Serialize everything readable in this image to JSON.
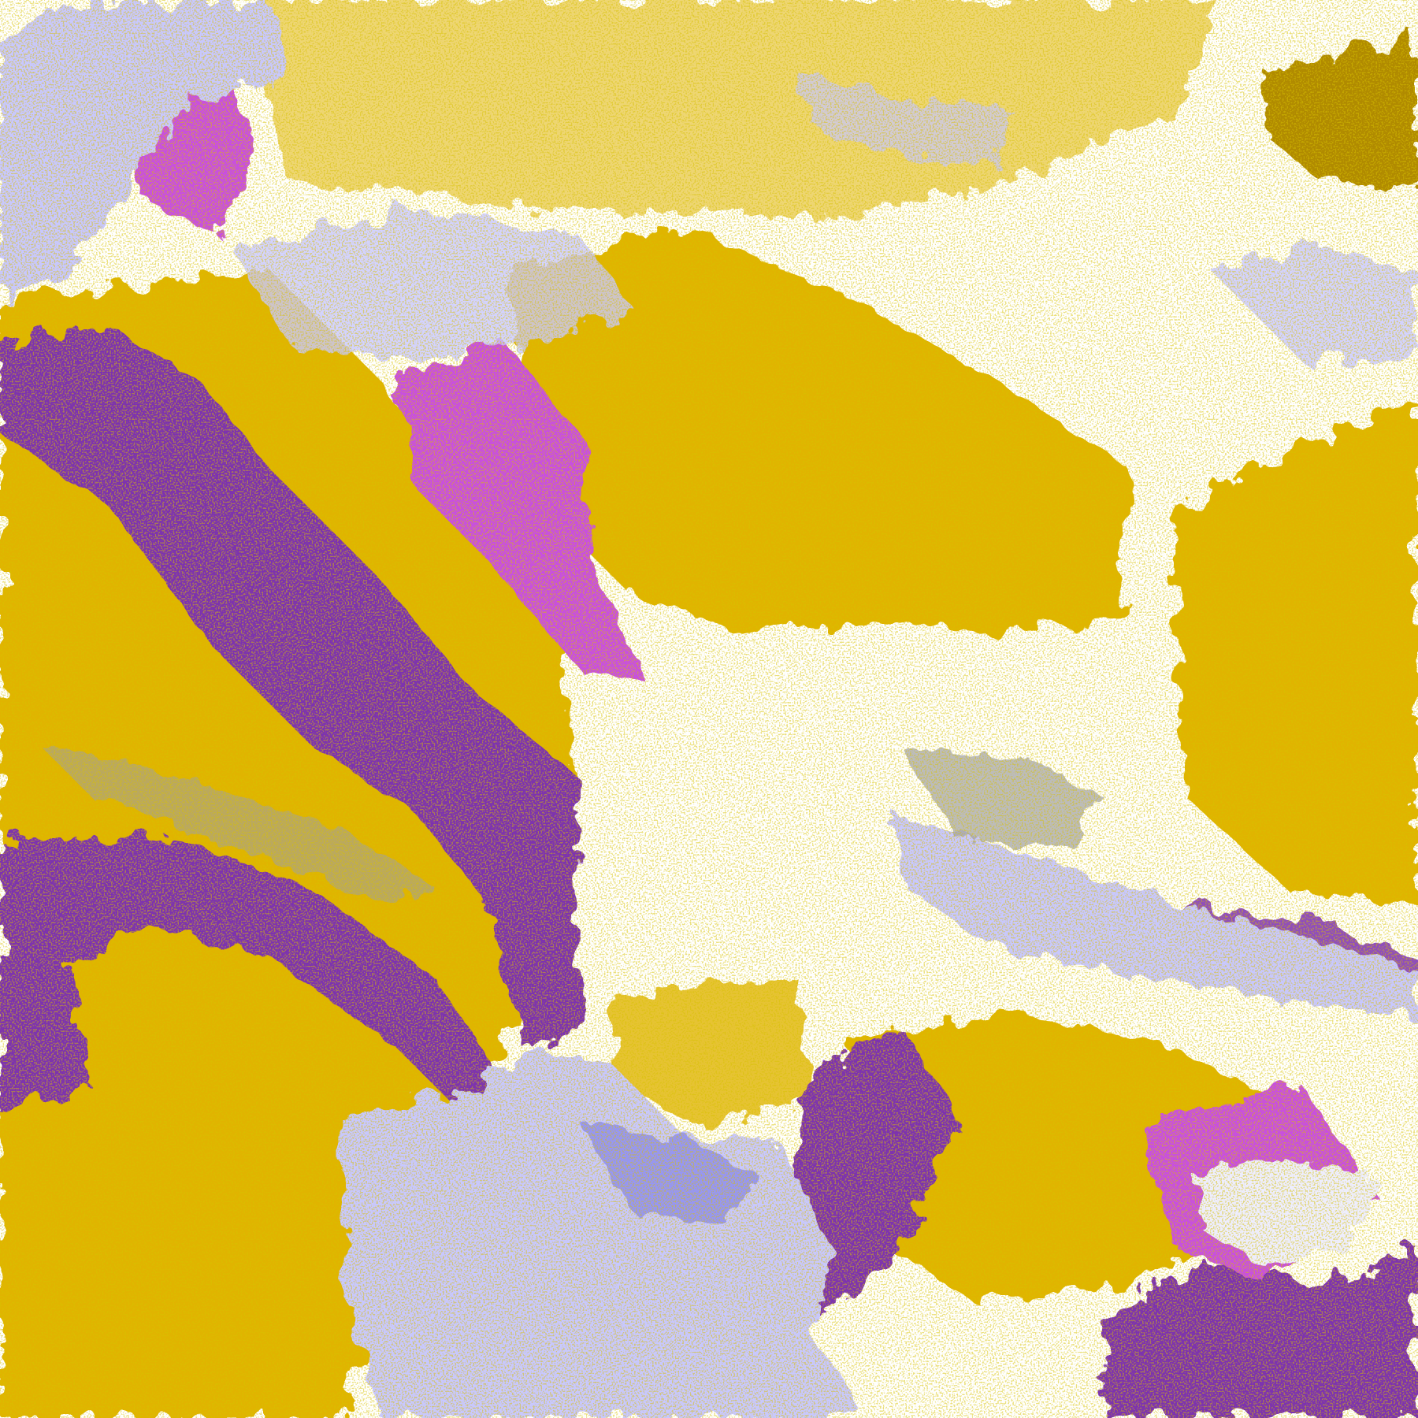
{
  "image": {
    "kind": "satellite cloud-classification composite",
    "palette": {
      "clear": "#ffffff",
      "gold": "#e0b400",
      "dark_gold": "#b08a00",
      "purple": "#7b30b0",
      "magenta": "#c850e0",
      "lavender": "#c8c8ff",
      "pale_lavender": "#eeeeff",
      "periwinkle": "#8080f0",
      "gray": "#a0a0a0"
    }
  }
}
